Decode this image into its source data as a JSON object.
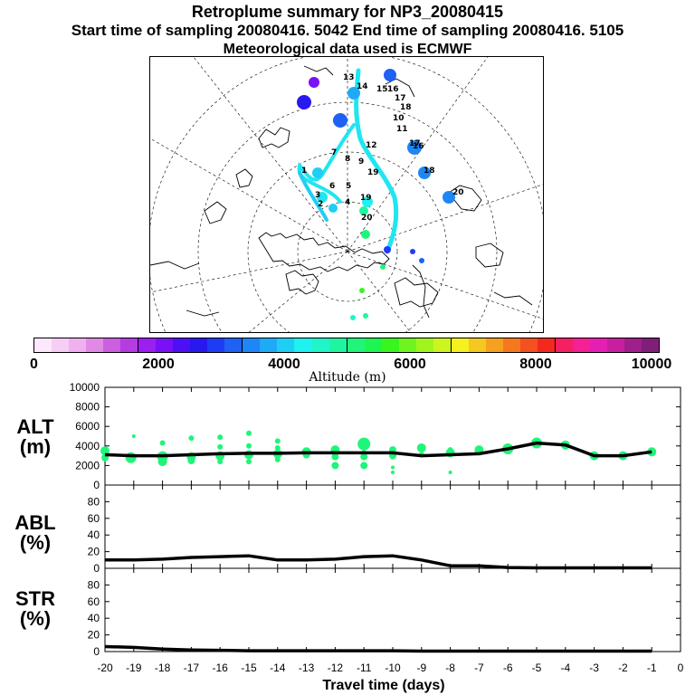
{
  "header": {
    "title": "Retroplume summary for NP3_20080415",
    "line2": "Start time of sampling 20080416.  5042     End time of sampling 20080416.  5105",
    "line3": "Meteorological data used is ECMWF"
  },
  "colorbar": {
    "label": "Altitude (m)",
    "ticks": [
      "0",
      "2000",
      "4000",
      "6000",
      "8000",
      "10000"
    ],
    "colors": [
      "#fde8fb",
      "#f6cdf5",
      "#eeb0ef",
      "#e08ae6",
      "#cc5ee0",
      "#b43ce0",
      "#9a1ff0",
      "#7a10f5",
      "#4d10f5",
      "#2a18f0",
      "#1f3cf5",
      "#1f60f5",
      "#1f86f5",
      "#1faaf5",
      "#1fcef5",
      "#1ff0f0",
      "#1ff5c8",
      "#1ff5a0",
      "#1ff578",
      "#1ff550",
      "#38f51f",
      "#6ef51f",
      "#a0f51f",
      "#ccf51f",
      "#f5f01f",
      "#f5c81f",
      "#f5a01f",
      "#f5781f",
      "#f5501f",
      "#f5281f",
      "#f51f64",
      "#f51f96",
      "#e61fb4",
      "#c81fa0",
      "#a01f8c",
      "#801f78"
    ]
  },
  "map": {
    "labels": [
      "13",
      "14",
      "15",
      "16",
      "17",
      "18",
      "19",
      "20",
      "10",
      "11",
      "12",
      "9",
      "8",
      "7",
      "5",
      "6",
      "4",
      "3",
      "2",
      "1",
      "16",
      "17",
      "18",
      "19",
      "20"
    ]
  },
  "chart_data": [
    {
      "type": "line",
      "title": "ALT (m)",
      "xlabel": "Travel time (days)",
      "ylabel": "ALT (m)",
      "xlim": [
        -20,
        0
      ],
      "ylim": [
        0,
        10000
      ],
      "yticks": [
        "0",
        "2000",
        "4000",
        "6000",
        "8000",
        "10000"
      ],
      "x": [
        -20,
        -19,
        -18,
        -17,
        -16,
        -15,
        -14,
        -13,
        -12,
        -11,
        -10,
        -9,
        -8,
        -7,
        -6,
        -5,
        -4,
        -3,
        -2,
        -1
      ],
      "values": [
        3100,
        3000,
        3000,
        3100,
        3200,
        3250,
        3250,
        3300,
        3300,
        3300,
        3300,
        3000,
        3100,
        3200,
        3700,
        4300,
        4100,
        3000,
        3000,
        3400
      ],
      "scatter": {
        "x": [
          -20,
          -19.1,
          -18,
          -17,
          -16,
          -15,
          -14,
          -13,
          -12,
          -11,
          -10,
          -9,
          -8,
          -7,
          -6,
          -5,
          -4,
          -3,
          -2,
          -1,
          -20,
          -19,
          -18,
          -17,
          -16,
          -15,
          -14,
          -13,
          -12,
          -11,
          -10,
          -9,
          -8,
          -7,
          -18,
          -17,
          -16,
          -15,
          -14,
          -12,
          -11,
          -10,
          -8,
          -16,
          -15,
          -14,
          -12,
          -11,
          -10
        ],
        "y": [
          3500,
          2800,
          2900,
          2900,
          3000,
          3100,
          3200,
          3400,
          3600,
          4200,
          3600,
          3800,
          3300,
          3600,
          3700,
          4300,
          4100,
          3000,
          3000,
          3400,
          2800,
          5000,
          4300,
          4800,
          4900,
          5300,
          4500,
          3100,
          2900,
          2900,
          3000,
          3100,
          3600,
          3300,
          2400,
          2500,
          2400,
          2400,
          2600,
          2000,
          2000,
          1800,
          1300,
          3900,
          4000,
          3800,
          3700,
          3300,
          1300
        ],
        "r": [
          5,
          6,
          6,
          5,
          5,
          5,
          5,
          5,
          5,
          7,
          4,
          5,
          5,
          5,
          6,
          6,
          5,
          5,
          5,
          5,
          4,
          2,
          3,
          3,
          3,
          3,
          3,
          4,
          4,
          4,
          4,
          3,
          3,
          3,
          5,
          4,
          3,
          3,
          3,
          4,
          4,
          2,
          2,
          3,
          3,
          3,
          3,
          3,
          2
        ],
        "color": "#1ff578"
      }
    },
    {
      "type": "line",
      "title": "ABL (%)",
      "ylabel": "ABL (%)",
      "xlim": [
        -20,
        0
      ],
      "ylim": [
        0,
        100
      ],
      "yticks": [
        "0",
        "20",
        "40",
        "60",
        "80"
      ],
      "x": [
        -20,
        -19,
        -18,
        -17,
        -16,
        -15,
        -14,
        -13,
        -12,
        -11,
        -10,
        -9,
        -8,
        -7,
        -6,
        -5,
        -4,
        -3,
        -2,
        -1
      ],
      "values": [
        10,
        10,
        11,
        13,
        14,
        15,
        10,
        10,
        11,
        14,
        15,
        10,
        3,
        3,
        1,
        0.5,
        0.5,
        0.5,
        0.5,
        0.5
      ]
    },
    {
      "type": "line",
      "title": "STR (%)",
      "ylabel": "STR (%)",
      "xlim": [
        -20,
        0
      ],
      "ylim": [
        0,
        100
      ],
      "yticks": [
        "0",
        "20",
        "40",
        "60",
        "80"
      ],
      "x": [
        -20,
        -19,
        -18,
        -17,
        -16,
        -15,
        -14,
        -13,
        -12,
        -11,
        -10,
        -9,
        -8,
        -7,
        -6,
        -5,
        -4,
        -3,
        -2,
        -1
      ],
      "values": [
        6,
        5,
        3,
        2,
        1.5,
        1,
        1,
        1,
        1,
        1,
        1,
        0.5,
        0.5,
        0.5,
        0.5,
        0.5,
        0.5,
        0.5,
        0.5,
        0.5
      ],
      "xticks": [
        "-20",
        "-19",
        "-18",
        "-17",
        "-16",
        "-15",
        "-14",
        "-13",
        "-12",
        "-11",
        "-10",
        "-9",
        "-8",
        "-7",
        "-6",
        "-5",
        "-4",
        "-3",
        "-2",
        "-1",
        "0"
      ]
    }
  ]
}
